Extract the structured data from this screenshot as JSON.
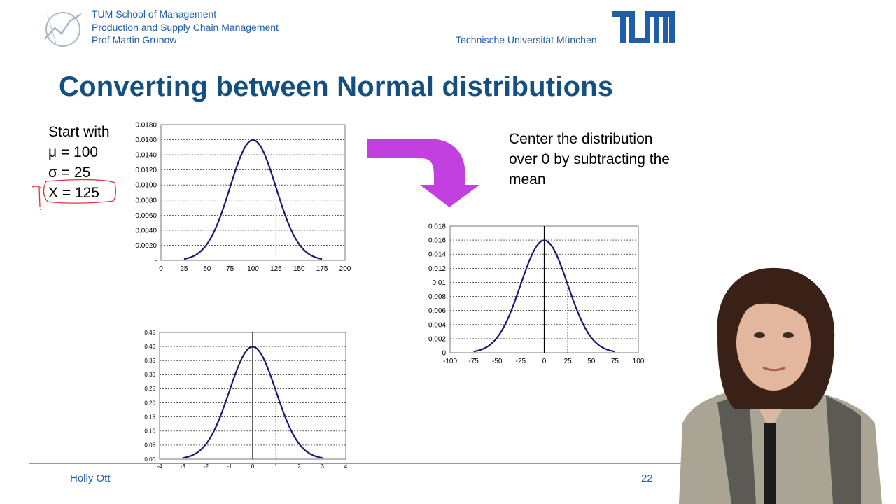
{
  "header": {
    "lines": [
      "TUM School of Management",
      "Production and Supply Chain Management",
      "Prof Martin Grunow"
    ],
    "university": "Technische Universität München",
    "logo_icon": "tum-logo-icon",
    "brand_color": "#1f5ea8"
  },
  "slide": {
    "title": "Converting between Normal distributions",
    "start": {
      "lines": [
        "Start with",
        "μ = 100",
        "σ = 25",
        "X  = 125"
      ]
    },
    "center_text": "Center the distribution over 0 by subtracting the mean",
    "arrow_color": "#c23fe0",
    "title_color": "#14507f"
  },
  "footer": {
    "author": "Holly Ott",
    "page": "22"
  },
  "chart_data": [
    {
      "type": "line",
      "title": "",
      "mean": 100,
      "sd": 25,
      "xlim": [
        0,
        200
      ],
      "xticks": [
        "0",
        "25",
        "50",
        "75",
        "100",
        "125",
        "150",
        "175",
        "200"
      ],
      "ylim": [
        0,
        0.018
      ],
      "yticks": [
        "-",
        "0.0020",
        "0.0040",
        "0.0060",
        "0.0080",
        "0.0100",
        "0.0120",
        "0.0140",
        "0.0160",
        "0.0180"
      ],
      "marker_x": 125,
      "curve_range": [
        25,
        175
      ],
      "grid": true
    },
    {
      "type": "line",
      "title": "",
      "mean": 0,
      "sd": 25,
      "xlim": [
        -100,
        100
      ],
      "xticks": [
        "-100",
        "-75",
        "-50",
        "-25",
        "0",
        "25",
        "50",
        "75",
        "100"
      ],
      "ylim": [
        0,
        0.018
      ],
      "yticks": [
        "0",
        "0.002",
        "0.004",
        "0.006",
        "0.008",
        "0.01",
        "0.012",
        "0.014",
        "0.016",
        "0.018"
      ],
      "marker_x": 25,
      "curve_range": [
        -75,
        75
      ],
      "grid": true
    },
    {
      "type": "line",
      "title": "",
      "mean": 0,
      "sd": 1,
      "xlim": [
        -4,
        4
      ],
      "xticks": [
        "-4",
        "-3",
        "-2",
        "-1",
        "0",
        "1",
        "2",
        "3",
        "4"
      ],
      "ylim": [
        0,
        0.45
      ],
      "yticks": [
        "0.00",
        "0.05",
        "0.10",
        "0.15",
        "0.20",
        "0.25",
        "0.30",
        "0.35",
        "0.40",
        "0.45"
      ],
      "marker_x": 1,
      "curve_range": [
        -3,
        3
      ],
      "grid": true
    }
  ]
}
